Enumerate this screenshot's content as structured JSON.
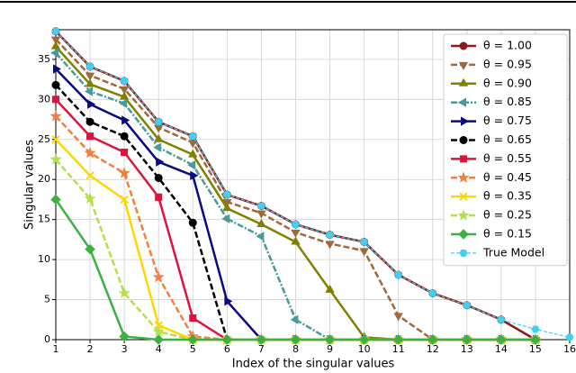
{
  "chart_data": {
    "type": "line",
    "x_label": "Index of the singular values",
    "y_label": "Singular values",
    "x": [
      1,
      2,
      3,
      4,
      5,
      6,
      7,
      8,
      9,
      10,
      11,
      12,
      13,
      14,
      15,
      16
    ],
    "xlim": [
      1,
      16
    ],
    "xticks": [
      1,
      2,
      3,
      4,
      5,
      6,
      7,
      8,
      9,
      10,
      11,
      12,
      13,
      14,
      15,
      16
    ],
    "ylim": [
      0,
      38.7
    ],
    "yticks": [
      0,
      5,
      10,
      15,
      20,
      25,
      30,
      35
    ],
    "grid": true,
    "legend": "upper right",
    "series": [
      {
        "name": "θ = 1.00",
        "color": "#8b1a1a",
        "style": "solid",
        "marker": "circle",
        "values": [
          38.5,
          34.1,
          32.3,
          27.2,
          25.4,
          18.1,
          16.7,
          14.4,
          13.1,
          12.2,
          8.1,
          5.8,
          4.3,
          2.5,
          0,
          null
        ]
      },
      {
        "name": "θ = 0.95",
        "color": "#a0693a",
        "style": "dashed",
        "marker": "tri_down",
        "values": [
          37.5,
          33,
          31.3,
          26.5,
          24.6,
          17.2,
          15.8,
          13.4,
          12,
          11.1,
          3,
          0,
          0,
          0,
          0,
          null
        ]
      },
      {
        "name": "θ = 0.90",
        "color": "#808000",
        "style": "solid",
        "marker": "tri_up",
        "values": [
          36.6,
          31.9,
          30.3,
          25,
          23.1,
          16.4,
          14.4,
          12.2,
          6.2,
          0.3,
          0,
          0,
          0,
          0,
          0,
          null
        ]
      },
      {
        "name": "θ = 0.85",
        "color": "#4a9a9a",
        "style": "dashdot",
        "marker": "tri_left",
        "values": [
          35.8,
          31,
          29.5,
          24,
          21.8,
          15.1,
          12.9,
          2.5,
          0,
          0,
          0,
          0,
          0,
          0,
          0,
          null
        ]
      },
      {
        "name": "θ = 0.75",
        "color": "#0a0a80",
        "style": "solid",
        "marker": "tri_right",
        "values": [
          33.8,
          29.4,
          27.4,
          22.2,
          20.5,
          4.8,
          0,
          0,
          0,
          0,
          0,
          0,
          0,
          0,
          0,
          null
        ]
      },
      {
        "name": "θ = 0.65",
        "color": "#000000",
        "style": "dashed",
        "marker": "circle",
        "values": [
          31.8,
          27.2,
          25.4,
          20.2,
          14.6,
          0,
          0,
          0,
          0,
          0,
          0,
          0,
          0,
          0,
          0,
          null
        ]
      },
      {
        "name": "θ = 0.55",
        "color": "#dc143c",
        "style": "solid",
        "marker": "square",
        "values": [
          30,
          25.4,
          23.4,
          17.8,
          2.7,
          0,
          0,
          0,
          0,
          0,
          0,
          0,
          0,
          0,
          0,
          null
        ]
      },
      {
        "name": "θ = 0.45",
        "color": "#f08040",
        "style": "dashed",
        "marker": "star",
        "values": [
          27.9,
          23.3,
          20.8,
          7.8,
          0.4,
          0,
          0,
          0,
          0,
          0,
          0,
          0,
          0,
          0,
          0,
          null
        ]
      },
      {
        "name": "θ = 0.35",
        "color": "#ffd700",
        "style": "solid",
        "marker": "x",
        "values": [
          25,
          20.5,
          17.5,
          1.8,
          0,
          0,
          0,
          0,
          0,
          0,
          0,
          0,
          0,
          0,
          0,
          null
        ]
      },
      {
        "name": "θ = 0.25",
        "color": "#b5e04a",
        "style": "dashed",
        "marker": "star",
        "values": [
          22.5,
          17.6,
          5.8,
          1,
          0,
          0,
          0,
          0,
          0,
          0,
          0,
          0,
          0,
          0,
          0,
          null
        ]
      },
      {
        "name": "θ = 0.15",
        "color": "#3cb043",
        "style": "solid",
        "marker": "diamond",
        "values": [
          17.5,
          11.3,
          0.4,
          0,
          0,
          0,
          0,
          0,
          0,
          0,
          0,
          0,
          0,
          0,
          0,
          null
        ]
      },
      {
        "name": "True Model",
        "color": "#40d0f0",
        "style": "thin-dashed",
        "marker": "hexagon",
        "values": [
          38.5,
          34.1,
          32.3,
          27.2,
          25.4,
          18.1,
          16.7,
          14.4,
          13.1,
          12.2,
          8.1,
          5.8,
          4.3,
          2.5,
          1.3,
          0.3
        ]
      }
    ]
  }
}
